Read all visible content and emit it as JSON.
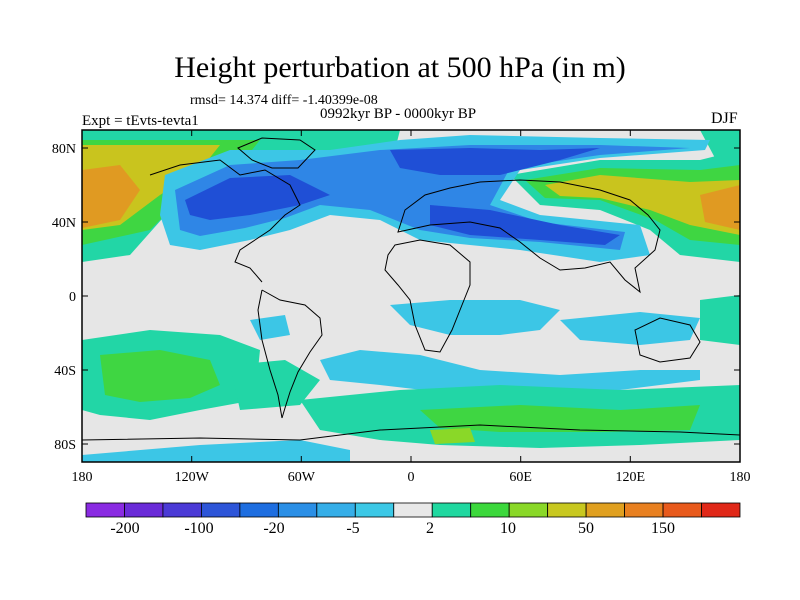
{
  "header": {
    "title": "Height perturbation at 500 hPa (in m)",
    "stats": "rmsd= 14.374 diff= -1.40399e-08",
    "experiment": "Expt = tEvts-tevta1",
    "period": "0992kyr BP - 0000kyr BP",
    "season": "DJF"
  },
  "axes": {
    "lon_ticks": [
      "180",
      "120W",
      "60W",
      "0",
      "60E",
      "120E",
      "180"
    ],
    "lat_ticks": [
      "80N",
      "40N",
      "0",
      "40S",
      "80S"
    ]
  },
  "colorbar": {
    "colors": [
      "#8a2be2",
      "#6a2bd8",
      "#4b3ad6",
      "#2d55d8",
      "#1e6ee0",
      "#2b8fe6",
      "#35aee8",
      "#3cc8e6",
      "#e8e8e8",
      "#20d8a0",
      "#3cd83c",
      "#8ad828",
      "#c8c820",
      "#e0a020",
      "#e88020",
      "#e85a1c",
      "#e02818"
    ],
    "labels": [
      "-200",
      "-100",
      "-20",
      "-5",
      "2",
      "10",
      "50",
      "150"
    ]
  },
  "field_colors": {
    "strong_neg": "#1f4fd6",
    "mid_neg": "#2f86e6",
    "weak_neg": "#3cc6e6",
    "neutral": "#e6e6e6",
    "weak_pos": "#22d6a6",
    "mid_pos": "#3fd642",
    "strong_pos": "#c9c41e",
    "max_pos": "#e09a22"
  }
}
